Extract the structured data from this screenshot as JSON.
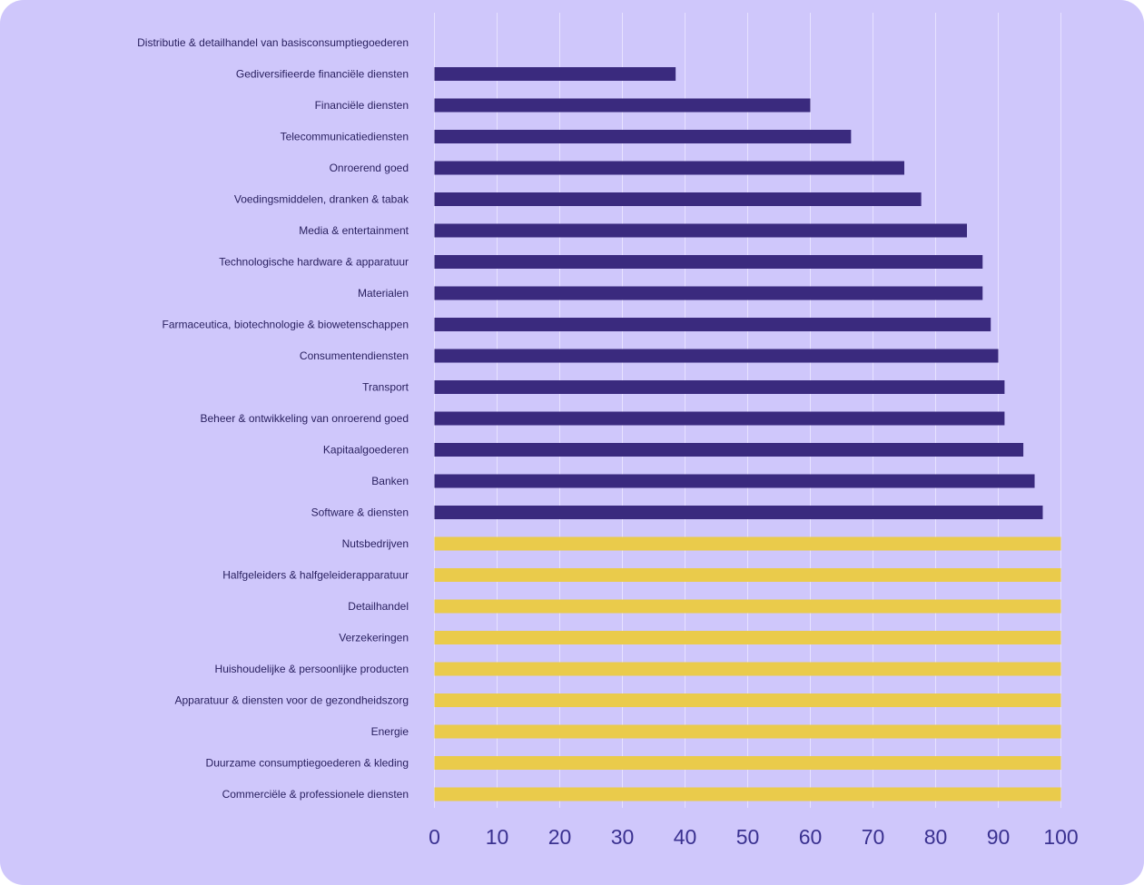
{
  "chart_data": {
    "type": "bar",
    "orientation": "horizontal",
    "title": "",
    "xlabel": "",
    "ylabel": "",
    "xlim": [
      0,
      100
    ],
    "x_ticks": [
      0,
      10,
      20,
      30,
      40,
      50,
      60,
      70,
      80,
      90,
      100
    ],
    "grid": true,
    "colors": {
      "background": "#cfc7fb",
      "bar_primary": "#3a2a7e",
      "bar_highlight": "#eacb4b",
      "text": "#2a2160",
      "tick": "#3a3190"
    },
    "categories": [
      "Distributie & detailhandel van basisconsumptiegoederen",
      "Gediversifieerde financiële diensten",
      "Financiële diensten",
      "Telecommunicatiediensten",
      "Onroerend goed",
      "Voedingsmiddelen, dranken & tabak",
      "Media & entertainment",
      "Technologische hardware & apparatuur",
      "Materialen",
      "Farmaceutica, biotechnologie & biowetenschappen",
      "Consumentendiensten",
      "Transport",
      "Beheer & ontwikkeling van onroerend goed",
      "Kapitaalgoederen",
      "Banken",
      "Software & diensten",
      "Nutsbedrijven",
      "Halfgeleiders & halfgeleiderapparatuur",
      "Detailhandel",
      "Verzekeringen",
      "Huishoudelijke & persoonlijke producten",
      "Apparatuur & diensten voor de gezondheidszorg",
      "Energie",
      "Duurzame consumptiegoederen & kleding",
      "Commerciële & professionele diensten"
    ],
    "values": [
      0,
      38.5,
      60,
      66.5,
      75,
      77.7,
      85,
      87.5,
      87.5,
      88.8,
      90,
      91,
      91,
      94,
      95.8,
      97.1,
      100,
      100,
      100,
      100,
      100,
      100,
      100,
      100,
      100
    ],
    "highlight": [
      false,
      false,
      false,
      false,
      false,
      false,
      false,
      false,
      false,
      false,
      false,
      false,
      false,
      false,
      false,
      false,
      true,
      true,
      true,
      true,
      true,
      true,
      true,
      true,
      true
    ]
  }
}
